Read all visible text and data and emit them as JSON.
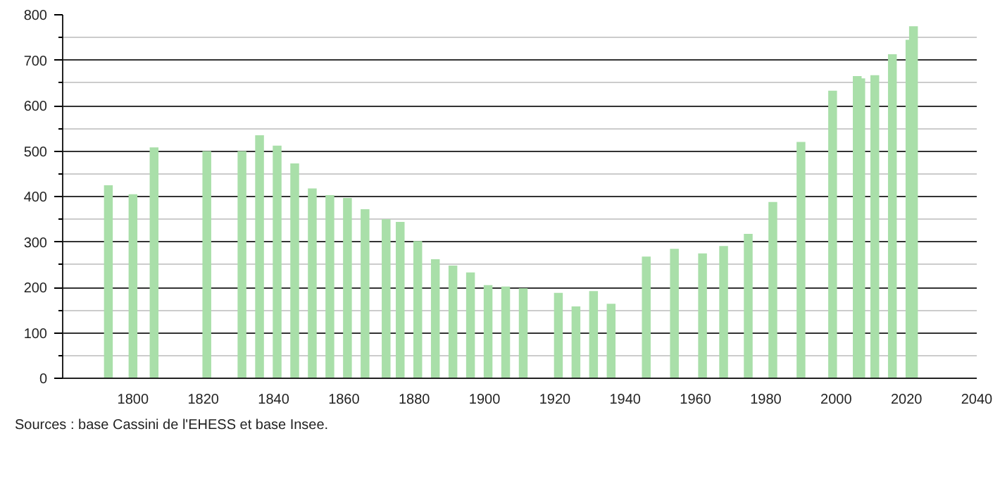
{
  "chart_data": {
    "type": "bar",
    "x": [
      1793,
      1800,
      1806,
      1821,
      1831,
      1836,
      1841,
      1846,
      1851,
      1856,
      1861,
      1866,
      1872,
      1876,
      1881,
      1886,
      1891,
      1896,
      1901,
      1906,
      1911,
      1921,
      1926,
      1931,
      1936,
      1946,
      1954,
      1962,
      1968,
      1975,
      1982,
      1990,
      1999,
      2006,
      2007,
      2011,
      2016,
      2021,
      2022
    ],
    "values": [
      425,
      405,
      508,
      500,
      500,
      535,
      512,
      473,
      418,
      403,
      397,
      372,
      350,
      344,
      302,
      262,
      248,
      233,
      205,
      202,
      198,
      188,
      158,
      192,
      164,
      268,
      285,
      275,
      291,
      318,
      388,
      520,
      633,
      665,
      660,
      667,
      713,
      745,
      775
    ],
    "color": "#a9dfa9",
    "xlim": [
      1780,
      2040
    ],
    "xticks": [
      1800,
      1820,
      1840,
      1860,
      1880,
      1900,
      1920,
      1940,
      1960,
      1980,
      2000,
      2020,
      2040
    ],
    "ylim": [
      0,
      800
    ],
    "yticks": [
      0,
      100,
      200,
      300,
      400,
      500,
      600,
      700,
      800
    ],
    "grid": "y",
    "annotations": [
      "Sources : base Cassini de l'EHESS et base Insee."
    ]
  }
}
